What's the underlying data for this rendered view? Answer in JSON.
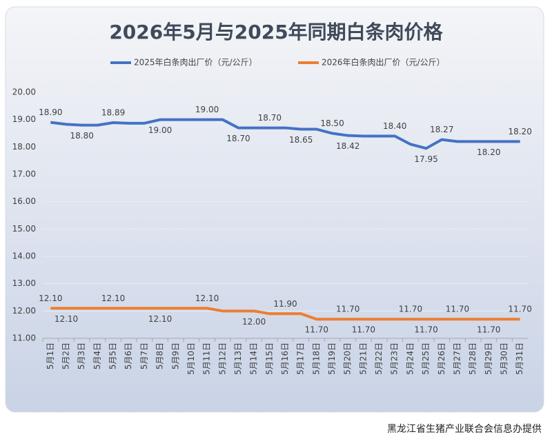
{
  "chart_data": {
    "type": "line",
    "title": "2026年5月与2025年同期白条肉价格",
    "categories": [
      "5月1日",
      "5月2日",
      "5月3日",
      "5月4日",
      "5月5日",
      "5月6日",
      "5月7日",
      "5月8日",
      "5月9日",
      "5月10日",
      "5月11日",
      "5月12日",
      "5月13日",
      "5月14日",
      "5月15日",
      "5月16日",
      "5月17日",
      "5月18日",
      "5月19日",
      "5月20日",
      "5月21日",
      "5月22日",
      "5月23日",
      "5月24日",
      "5月25日",
      "5月26日",
      "5月27日",
      "5月28日",
      "5月29日",
      "5月30日",
      "5月31日"
    ],
    "series": [
      {
        "name": "2025年白条肉出厂价（元/公斤）",
        "color": "#4472c4",
        "values": [
          18.9,
          18.83,
          18.8,
          18.8,
          18.89,
          18.87,
          18.87,
          19.0,
          19.0,
          19.0,
          19.0,
          19.0,
          18.7,
          18.7,
          18.7,
          18.7,
          18.65,
          18.65,
          18.5,
          18.42,
          18.4,
          18.4,
          18.4,
          18.1,
          17.95,
          18.27,
          18.2,
          18.2,
          18.2,
          18.2,
          18.2
        ],
        "value_labels": [
          "18.90",
          null,
          "18.80",
          null,
          "18.89",
          null,
          null,
          "19.00",
          null,
          null,
          "19.00",
          null,
          "18.70",
          null,
          "18.70",
          null,
          "18.65",
          null,
          "18.50",
          "18.42",
          null,
          null,
          "18.40",
          null,
          "17.95",
          "18.27",
          null,
          null,
          "18.20",
          null,
          "18.20"
        ]
      },
      {
        "name": "2026年白条肉出厂价（元/公斤）",
        "color": "#ed7d31",
        "values": [
          12.1,
          12.1,
          12.1,
          12.1,
          12.1,
          12.1,
          12.1,
          12.1,
          12.1,
          12.1,
          12.1,
          12.0,
          12.0,
          12.0,
          11.9,
          11.9,
          11.9,
          11.7,
          11.7,
          11.7,
          11.7,
          11.7,
          11.7,
          11.7,
          11.7,
          11.7,
          11.7,
          11.7,
          11.7,
          11.7,
          11.7
        ],
        "value_labels": [
          "12.10",
          "12.10",
          null,
          null,
          "12.10",
          null,
          null,
          "12.10",
          null,
          null,
          "12.10",
          null,
          null,
          "12.00",
          null,
          "11.90",
          null,
          "11.70",
          null,
          "11.70",
          "11.70",
          null,
          null,
          "11.70",
          "11.70",
          null,
          "11.70",
          null,
          "11.70",
          null,
          "11.70"
        ]
      }
    ],
    "ylim": [
      11,
      20
    ],
    "yticks": [
      {
        "value": 11,
        "label": "11.00"
      },
      {
        "value": 12,
        "label": "12.00"
      },
      {
        "value": 13,
        "label": "13.00"
      },
      {
        "value": 14,
        "label": "14.00"
      },
      {
        "value": 15,
        "label": "15.00"
      },
      {
        "value": 16,
        "label": "16.00"
      },
      {
        "value": 17,
        "label": "17.00"
      },
      {
        "value": 18,
        "label": "18.00"
      },
      {
        "value": 19,
        "label": "19.00"
      },
      {
        "value": 20,
        "label": "20.00"
      }
    ],
    "grid": true,
    "legend": "top",
    "source": "黑龙江省生猪产业联合会信息办提供"
  }
}
